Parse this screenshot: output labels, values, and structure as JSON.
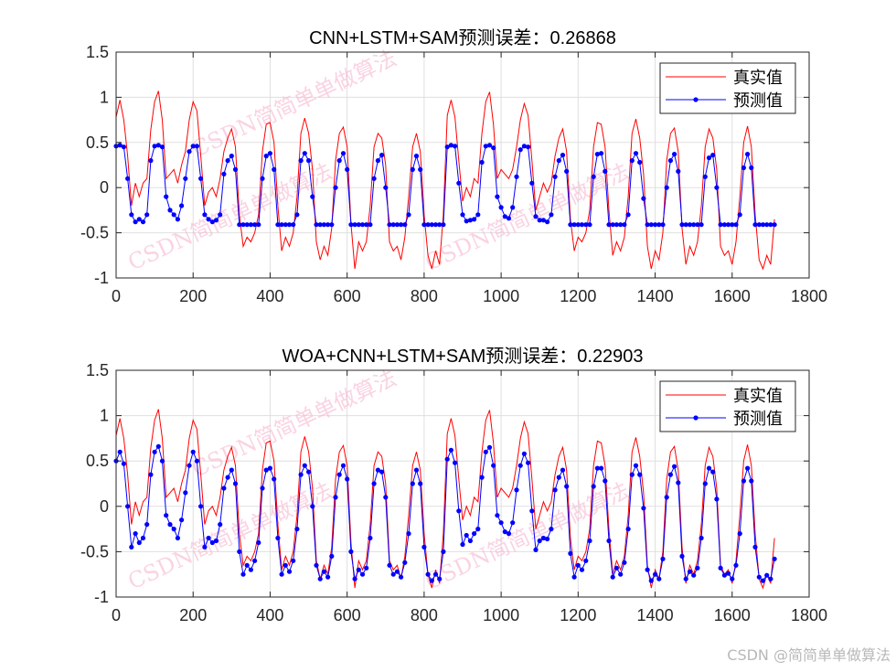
{
  "figure": {
    "background": "#ffffff",
    "watermark": "CSDN简简单单做算法",
    "footer": "CSDN @简简单单做算法"
  },
  "chart_data": [
    {
      "type": "line",
      "title": "CNN+LSTM+SAM预测误差：0.26868",
      "xlabel": "",
      "ylabel": "",
      "xlim": [
        0,
        1800
      ],
      "ylim": [
        -1,
        1.5
      ],
      "xticks": [
        "0",
        "200",
        "400",
        "600",
        "800",
        "1000",
        "1200",
        "1400",
        "1600",
        "1800"
      ],
      "yticks": [
        "-1",
        "-0.5",
        "0",
        "0.5",
        "1",
        "1.5"
      ],
      "grid": true,
      "legend_position": "top-right",
      "x": {
        "start": 0,
        "step": 10,
        "count": 172
      },
      "series": [
        {
          "name": "真实值",
          "color": "#ff0000",
          "marker": "none",
          "values": [
            0.78,
            0.97,
            0.75,
            0.35,
            -0.2,
            0.05,
            -0.1,
            0.05,
            0.1,
            0.64,
            0.95,
            1.07,
            0.75,
            0.1,
            0.15,
            0.2,
            0.05,
            0.25,
            0.4,
            0.75,
            0.95,
            0.85,
            0.35,
            -0.2,
            -0.05,
            0.0,
            -0.1,
            0.1,
            0.4,
            0.55,
            0.65,
            0.45,
            -0.3,
            -0.65,
            -0.55,
            -0.6,
            -0.5,
            -0.3,
            0.4,
            0.7,
            0.72,
            0.5,
            -0.2,
            -0.7,
            -0.55,
            -0.65,
            -0.5,
            -0.1,
            0.6,
            0.77,
            0.6,
            0.2,
            -0.6,
            -0.8,
            -0.65,
            -0.75,
            -0.45,
            0.3,
            0.6,
            0.67,
            0.45,
            -0.4,
            -0.9,
            -0.6,
            -0.7,
            -0.6,
            -0.2,
            0.45,
            0.6,
            0.55,
            0.25,
            -0.6,
            -0.7,
            -0.65,
            -0.8,
            -0.55,
            -0.1,
            0.45,
            0.6,
            0.4,
            -0.3,
            -0.75,
            -0.9,
            -0.7,
            -0.85,
            -0.3,
            0.8,
            0.97,
            0.78,
            0.3,
            -0.15,
            0.0,
            -0.1,
            0.1,
            0.05,
            0.6,
            0.95,
            1.06,
            0.7,
            0.1,
            0.2,
            0.15,
            0.1,
            0.2,
            0.45,
            0.75,
            0.93,
            0.8,
            0.3,
            -0.25,
            -0.1,
            0.05,
            -0.05,
            0.05,
            0.35,
            0.55,
            0.65,
            0.4,
            -0.35,
            -0.7,
            -0.55,
            -0.6,
            -0.5,
            -0.25,
            0.45,
            0.72,
            0.7,
            0.45,
            -0.25,
            -0.75,
            -0.6,
            -0.7,
            -0.55,
            -0.1,
            0.6,
            0.76,
            0.55,
            0.15,
            -0.65,
            -0.9,
            -0.7,
            -0.8,
            -0.5,
            0.3,
            0.6,
            0.66,
            0.4,
            -0.45,
            -0.85,
            -0.65,
            -0.75,
            -0.6,
            -0.2,
            0.45,
            0.65,
            0.55,
            0.2,
            -0.65,
            -0.75,
            -0.7,
            -0.85,
            -0.6,
            -0.1,
            0.5,
            0.68,
            0.45,
            -0.3,
            -0.8,
            -0.9,
            -0.75,
            -0.85,
            -0.35
          ]
        },
        {
          "name": "预测值",
          "color": "#0000ff",
          "marker": "dot",
          "values": [
            0.46,
            0.47,
            0.45,
            0.1,
            -0.3,
            -0.38,
            -0.35,
            -0.38,
            -0.3,
            0.3,
            0.46,
            0.47,
            0.45,
            -0.1,
            -0.25,
            -0.3,
            -0.35,
            -0.2,
            0.1,
            0.4,
            0.46,
            0.46,
            0.1,
            -0.3,
            -0.35,
            -0.38,
            -0.36,
            -0.3,
            0.15,
            0.3,
            0.35,
            0.2,
            -0.41,
            -0.41,
            -0.41,
            -0.41,
            -0.41,
            -0.41,
            0.1,
            0.35,
            0.38,
            0.2,
            -0.41,
            -0.41,
            -0.41,
            -0.41,
            -0.41,
            -0.3,
            0.3,
            0.38,
            0.3,
            -0.1,
            -0.41,
            -0.41,
            -0.41,
            -0.41,
            -0.41,
            0.0,
            0.3,
            0.38,
            0.2,
            -0.41,
            -0.41,
            -0.41,
            -0.41,
            -0.41,
            -0.41,
            0.1,
            0.3,
            0.36,
            0.0,
            -0.41,
            -0.41,
            -0.41,
            -0.41,
            -0.41,
            -0.3,
            0.2,
            0.35,
            0.2,
            -0.41,
            -0.41,
            -0.41,
            -0.41,
            -0.41,
            -0.41,
            0.45,
            0.47,
            0.46,
            0.05,
            -0.3,
            -0.37,
            -0.36,
            -0.35,
            -0.3,
            0.28,
            0.46,
            0.47,
            0.44,
            -0.1,
            -0.22,
            -0.32,
            -0.34,
            -0.22,
            0.12,
            0.42,
            0.46,
            0.45,
            0.05,
            -0.32,
            -0.36,
            -0.36,
            -0.38,
            -0.3,
            0.12,
            0.3,
            0.36,
            0.18,
            -0.41,
            -0.41,
            -0.41,
            -0.41,
            -0.41,
            -0.41,
            0.12,
            0.37,
            0.38,
            0.18,
            -0.41,
            -0.41,
            -0.41,
            -0.41,
            -0.41,
            -0.3,
            0.3,
            0.38,
            0.28,
            -0.12,
            -0.41,
            -0.41,
            -0.41,
            -0.41,
            -0.41,
            0.0,
            0.3,
            0.37,
            0.18,
            -0.41,
            -0.41,
            -0.41,
            -0.41,
            -0.41,
            -0.41,
            0.12,
            0.33,
            0.36,
            0.0,
            -0.41,
            -0.41,
            -0.41,
            -0.41,
            -0.41,
            -0.3,
            0.22,
            0.37,
            0.22,
            -0.41,
            -0.41,
            -0.41,
            -0.41,
            -0.41,
            -0.41
          ]
        }
      ]
    },
    {
      "type": "line",
      "title": "WOA+CNN+LSTM+SAM预测误差：0.22903",
      "xlabel": "",
      "ylabel": "",
      "xlim": [
        0,
        1800
      ],
      "ylim": [
        -1,
        1.5
      ],
      "xticks": [
        "0",
        "200",
        "400",
        "600",
        "800",
        "1000",
        "1200",
        "1400",
        "1600",
        "1800"
      ],
      "yticks": [
        "-1",
        "-0.5",
        "0",
        "0.5",
        "1",
        "1.5"
      ],
      "grid": true,
      "legend_position": "top-right",
      "x": {
        "start": 0,
        "step": 10,
        "count": 172
      },
      "series": [
        {
          "name": "真实值",
          "color": "#ff0000",
          "marker": "none",
          "values": [
            0.78,
            0.97,
            0.75,
            0.35,
            -0.2,
            0.05,
            -0.1,
            0.05,
            0.1,
            0.64,
            0.95,
            1.07,
            0.75,
            0.1,
            0.15,
            0.2,
            0.05,
            0.25,
            0.4,
            0.75,
            0.95,
            0.85,
            0.35,
            -0.2,
            -0.05,
            0.0,
            -0.1,
            0.1,
            0.4,
            0.55,
            0.65,
            0.45,
            -0.3,
            -0.65,
            -0.55,
            -0.6,
            -0.5,
            -0.3,
            0.4,
            0.7,
            0.72,
            0.5,
            -0.2,
            -0.7,
            -0.55,
            -0.65,
            -0.5,
            -0.1,
            0.6,
            0.77,
            0.6,
            0.2,
            -0.6,
            -0.8,
            -0.65,
            -0.75,
            -0.45,
            0.3,
            0.6,
            0.67,
            0.45,
            -0.4,
            -0.9,
            -0.6,
            -0.7,
            -0.6,
            -0.2,
            0.45,
            0.6,
            0.55,
            0.25,
            -0.6,
            -0.7,
            -0.65,
            -0.8,
            -0.55,
            -0.1,
            0.45,
            0.6,
            0.4,
            -0.3,
            -0.75,
            -0.9,
            -0.7,
            -0.85,
            -0.3,
            0.8,
            0.97,
            0.78,
            0.3,
            -0.15,
            0.0,
            -0.1,
            0.1,
            0.05,
            0.6,
            0.95,
            1.06,
            0.7,
            0.1,
            0.2,
            0.15,
            0.1,
            0.2,
            0.45,
            0.75,
            0.93,
            0.8,
            0.3,
            -0.25,
            -0.1,
            0.05,
            -0.05,
            0.05,
            0.35,
            0.55,
            0.65,
            0.4,
            -0.35,
            -0.7,
            -0.55,
            -0.6,
            -0.5,
            -0.25,
            0.45,
            0.72,
            0.7,
            0.45,
            -0.25,
            -0.75,
            -0.6,
            -0.7,
            -0.55,
            -0.1,
            0.6,
            0.76,
            0.55,
            0.15,
            -0.65,
            -0.9,
            -0.7,
            -0.8,
            -0.5,
            0.3,
            0.6,
            0.66,
            0.4,
            -0.45,
            -0.85,
            -0.65,
            -0.75,
            -0.6,
            -0.2,
            0.45,
            0.65,
            0.55,
            0.2,
            -0.65,
            -0.75,
            -0.7,
            -0.85,
            -0.6,
            -0.1,
            0.5,
            0.68,
            0.45,
            -0.3,
            -0.8,
            -0.9,
            -0.75,
            -0.85,
            -0.35
          ]
        },
        {
          "name": "预测值",
          "color": "#0000ff",
          "marker": "dot",
          "values": [
            0.5,
            0.6,
            0.47,
            0.0,
            -0.45,
            -0.3,
            -0.4,
            -0.35,
            -0.2,
            0.35,
            0.6,
            0.66,
            0.5,
            -0.1,
            -0.2,
            -0.25,
            -0.35,
            -0.15,
            0.15,
            0.45,
            0.6,
            0.5,
            0.0,
            -0.45,
            -0.35,
            -0.4,
            -0.38,
            -0.2,
            0.2,
            0.32,
            0.4,
            0.25,
            -0.5,
            -0.75,
            -0.65,
            -0.7,
            -0.6,
            -0.4,
            0.2,
            0.4,
            0.42,
            0.3,
            -0.35,
            -0.75,
            -0.65,
            -0.72,
            -0.6,
            -0.25,
            0.35,
            0.45,
            0.38,
            0.0,
            -0.65,
            -0.8,
            -0.72,
            -0.78,
            -0.55,
            0.1,
            0.35,
            0.45,
            0.3,
            -0.5,
            -0.8,
            -0.7,
            -0.75,
            -0.68,
            -0.35,
            0.25,
            0.4,
            0.38,
            0.1,
            -0.65,
            -0.75,
            -0.72,
            -0.78,
            -0.62,
            -0.3,
            0.25,
            0.4,
            0.25,
            -0.45,
            -0.75,
            -0.82,
            -0.75,
            -0.8,
            -0.5,
            0.52,
            0.62,
            0.48,
            -0.05,
            -0.42,
            -0.32,
            -0.38,
            -0.3,
            -0.25,
            0.32,
            0.6,
            0.65,
            0.45,
            -0.1,
            -0.18,
            -0.28,
            -0.3,
            -0.18,
            0.18,
            0.45,
            0.58,
            0.48,
            -0.05,
            -0.48,
            -0.38,
            -0.35,
            -0.36,
            -0.25,
            0.18,
            0.32,
            0.4,
            0.22,
            -0.52,
            -0.78,
            -0.65,
            -0.7,
            -0.6,
            -0.38,
            0.22,
            0.42,
            0.42,
            0.28,
            -0.38,
            -0.78,
            -0.68,
            -0.75,
            -0.62,
            -0.25,
            0.35,
            0.45,
            0.35,
            -0.02,
            -0.7,
            -0.82,
            -0.75,
            -0.8,
            -0.58,
            0.1,
            0.35,
            0.44,
            0.26,
            -0.55,
            -0.8,
            -0.72,
            -0.76,
            -0.68,
            -0.35,
            0.25,
            0.42,
            0.38,
            0.08,
            -0.68,
            -0.76,
            -0.74,
            -0.8,
            -0.65,
            -0.3,
            0.28,
            0.42,
            0.28,
            -0.45,
            -0.78,
            -0.82,
            -0.76,
            -0.8,
            -0.58
          ]
        }
      ]
    }
  ]
}
